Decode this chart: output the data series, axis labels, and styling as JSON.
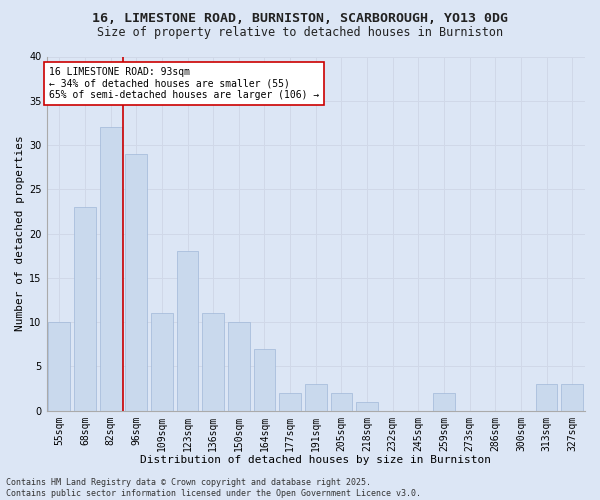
{
  "title_line1": "16, LIMESTONE ROAD, BURNISTON, SCARBOROUGH, YO13 0DG",
  "title_line2": "Size of property relative to detached houses in Burniston",
  "xlabel": "Distribution of detached houses by size in Burniston",
  "ylabel": "Number of detached properties",
  "categories": [
    "55sqm",
    "68sqm",
    "82sqm",
    "96sqm",
    "109sqm",
    "123sqm",
    "136sqm",
    "150sqm",
    "164sqm",
    "177sqm",
    "191sqm",
    "205sqm",
    "218sqm",
    "232sqm",
    "245sqm",
    "259sqm",
    "273sqm",
    "286sqm",
    "300sqm",
    "313sqm",
    "327sqm"
  ],
  "values": [
    10,
    23,
    32,
    29,
    11,
    18,
    11,
    10,
    7,
    2,
    3,
    2,
    1,
    0,
    0,
    2,
    0,
    0,
    0,
    3,
    3
  ],
  "bar_color": "#c9d9ed",
  "bar_edgecolor": "#a0b8d8",
  "grid_color": "#d0d8e8",
  "background_color": "#dce6f5",
  "fig_background_color": "#dce6f5",
  "vline_color": "#cc0000",
  "annotation_text": "16 LIMESTONE ROAD: 93sqm\n← 34% of detached houses are smaller (55)\n65% of semi-detached houses are larger (106) →",
  "annotation_box_facecolor": "#ffffff",
  "annotation_box_edgecolor": "#cc0000",
  "ylim": [
    0,
    40
  ],
  "yticks": [
    0,
    5,
    10,
    15,
    20,
    25,
    30,
    35,
    40
  ],
  "footnote": "Contains HM Land Registry data © Crown copyright and database right 2025.\nContains public sector information licensed under the Open Government Licence v3.0.",
  "title_fontsize": 9.5,
  "subtitle_fontsize": 8.5,
  "axis_label_fontsize": 8,
  "tick_fontsize": 7,
  "annotation_fontsize": 7,
  "footnote_fontsize": 6
}
